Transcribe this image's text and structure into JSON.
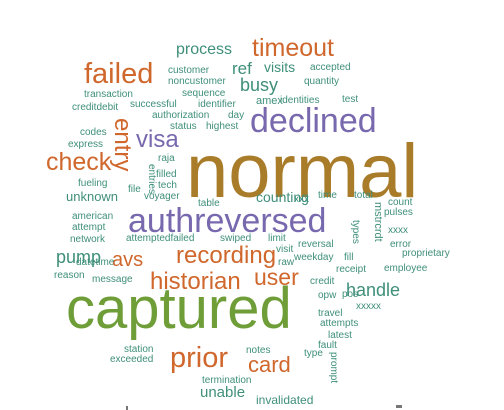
{
  "palette": {
    "teal": "#3f8f7a",
    "orange": "#d0672c",
    "purple": "#7868ae",
    "brown": "#a97c2a",
    "green": "#6f9e39"
  },
  "words": {
    "normal": "normal",
    "captured": "captured",
    "authreversed": "authreversed",
    "declined": "declined",
    "failed": "failed",
    "timeout": "timeout",
    "prior": "prior",
    "historian": "historian",
    "recording": "recording",
    "check": "check",
    "visa": "visa",
    "entry": "entry",
    "avs": "avs",
    "user": "user",
    "card": "card",
    "handle": "handle",
    "pump": "pump",
    "busy": "busy",
    "ref": "ref",
    "process": "process",
    "unable": "unable",
    "counting": "counting",
    "visits": "visits",
    "customer": "customer",
    "noncustomer": "noncustomer",
    "sequence": "sequence",
    "transaction": "transaction",
    "creditdebit": "creditdebit",
    "successful": "successful",
    "identifier": "identifier",
    "authorization": "authorization",
    "day": "day",
    "status": "status",
    "highest": "highest",
    "amex": "amex",
    "identities": "identities",
    "test": "test",
    "accepted": "accepted",
    "quantity": "quantity",
    "codes": "codes",
    "express": "express",
    "raja": "raja",
    "entries": "entries",
    "filled": "filled",
    "tech": "tech",
    "fueling": "fueling",
    "file": "file",
    "voyager": "voyager",
    "table": "table",
    "xxx": "xxx",
    "time": "time",
    "total": "total",
    "unknown": "unknown",
    "american": "american",
    "attempt": "attempt",
    "network": "network",
    "attemptedfailed": "attemptedfailed",
    "swiped": "swiped",
    "limit": "limit",
    "reversal": "reversal",
    "weekday": "weekday",
    "fill": "fill",
    "types": "types",
    "mstrcrdt": "mstrcrdt",
    "count": "count",
    "pulses": "pulses",
    "xxxx": "xxxx",
    "error": "error",
    "proprietary": "proprietary",
    "datetime": "datetime",
    "visit": "visit",
    "raw": "raw",
    "receipt": "receipt",
    "employee": "employee",
    "reason": "reason",
    "message": "message",
    "credit": "credit",
    "opw": "opw",
    "pos": "pos",
    "xxxxx": "xxxxx",
    "travel": "travel",
    "attempts": "attempts",
    "latest": "latest",
    "fault": "fault",
    "type": "type",
    "prompt": "prompt",
    "station": "station",
    "exceeded": "exceeded",
    "notes": "notes",
    "termination": "termination",
    "invalidated": "invalidated"
  }
}
